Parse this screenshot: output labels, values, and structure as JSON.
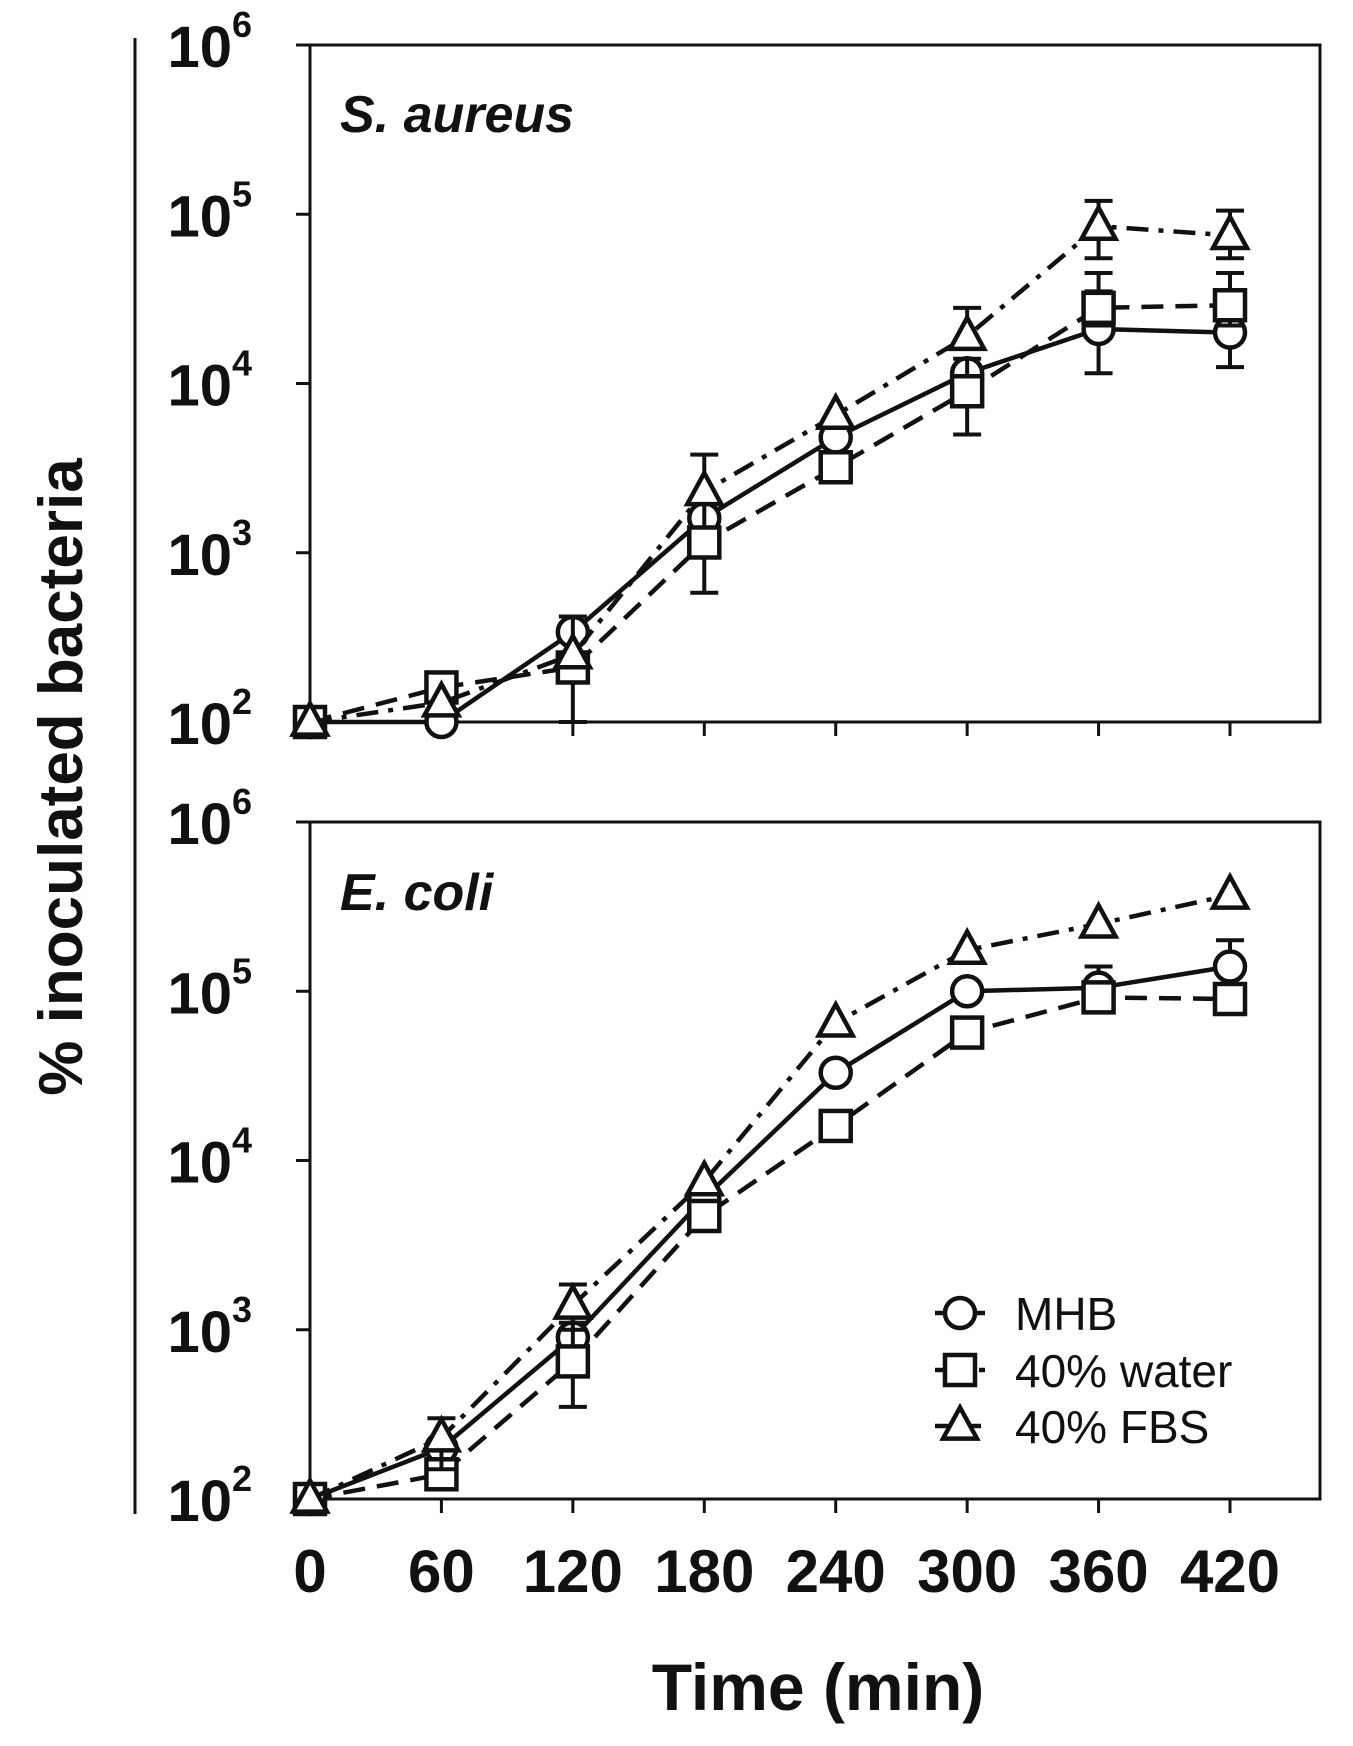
{
  "chart_data": {
    "type": "line",
    "ylabel": "% inoculated bacteria",
    "xlabel": "Time (min)",
    "x": [
      0,
      60,
      120,
      180,
      240,
      300,
      360,
      420
    ],
    "x_tick_labels": [
      "0",
      "60",
      "120",
      "180",
      "240",
      "300",
      "360",
      "420"
    ],
    "y_scale": "log",
    "ylim": [
      100,
      1000000
    ],
    "y_ticks": [
      {
        "base": "10",
        "exp": "2"
      },
      {
        "base": "10",
        "exp": "3"
      },
      {
        "base": "10",
        "exp": "4"
      },
      {
        "base": "10",
        "exp": "5"
      },
      {
        "base": "10",
        "exp": "6"
      }
    ],
    "legend": {
      "placement": "bottom-right of lower panel",
      "entries": [
        {
          "label": "MHB",
          "marker": "circle",
          "linestyle": "solid"
        },
        {
          "label": "40% water",
          "marker": "square",
          "linestyle": "dashed"
        },
        {
          "label": "40% FBS",
          "marker": "triangle",
          "linestyle": "dashdot"
        }
      ]
    },
    "panels": [
      {
        "title": "S. aureus",
        "series": [
          {
            "name": "MHB",
            "marker": "circle",
            "linestyle": "solid",
            "values": [
              100,
              100,
              340,
              1600,
              4800,
              11500,
              21000,
              20000
            ],
            "err_low": [
              100,
              100,
              340,
              1600,
              4800,
              11500,
              11500,
              12500
            ],
            "err_high": [
              100,
              100,
              340,
              1600,
              4800,
              11500,
              35000,
              31000
            ]
          },
          {
            "name": "40% water",
            "marker": "square",
            "linestyle": "dashed",
            "values": [
              100,
              160,
              210,
              1150,
              3200,
              9000,
              28000,
              29000
            ],
            "err_low": [
              100,
              160,
              100,
              580,
              2700,
              5000,
              22000,
              22000
            ],
            "err_high": [
              100,
              160,
              420,
              3800,
              3800,
              14000,
              45000,
              45000
            ]
          },
          {
            "name": "40% FBS",
            "marker": "triangle",
            "linestyle": "dashdot",
            "values": [
              100,
              130,
              250,
              2300,
              6500,
              19000,
              85000,
              75000
            ],
            "err_low": [
              100,
              130,
              250,
              2300,
              6500,
              19000,
              55000,
              55000
            ],
            "err_high": [
              100,
              130,
              250,
              2300,
              6500,
              28000,
              120000,
              105000
            ]
          }
        ]
      },
      {
        "title": "E. coli",
        "series": [
          {
            "name": "MHB",
            "marker": "circle",
            "linestyle": "solid",
            "values": [
              100,
              200,
              900,
              6000,
              33000,
              100000,
              105000,
              140000
            ],
            "err_low": [
              100,
              200,
              900,
              6000,
              33000,
              100000,
              80000,
              110000
            ],
            "err_high": [
              100,
              200,
              900,
              6000,
              33000,
              100000,
              140000,
              200000
            ]
          },
          {
            "name": "40% water",
            "marker": "square",
            "linestyle": "dashed",
            "values": [
              100,
              140,
              650,
              4700,
              16000,
              57000,
              92000,
              90000
            ],
            "err_low": [
              100,
              140,
              350,
              4700,
              16000,
              57000,
              92000,
              80000
            ],
            "err_high": [
              100,
              140,
              1100,
              4700,
              16000,
              57000,
              92000,
              110000
            ]
          },
          {
            "name": "40% FBS",
            "marker": "triangle",
            "linestyle": "dashdot",
            "values": [
              100,
              230,
              1400,
              7500,
              65000,
              175000,
              250000,
              370000
            ],
            "err_low": [
              100,
              150,
              1000,
              7500,
              65000,
              175000,
              250000,
              370000
            ],
            "err_high": [
              100,
              300,
              1850,
              7500,
              65000,
              175000,
              250000,
              370000
            ]
          }
        ]
      }
    ]
  }
}
